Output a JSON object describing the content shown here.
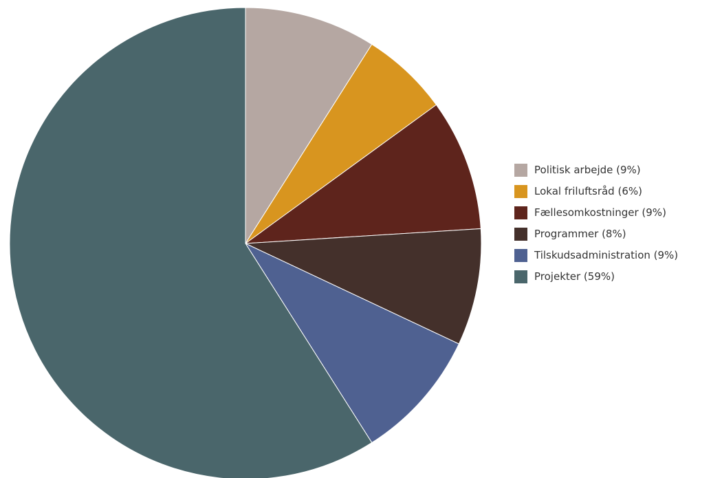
{
  "chart_data": {
    "type": "pie",
    "slices": [
      {
        "label": "Politisk arbejde (9%)",
        "value": 9,
        "color": "#b5a7a2"
      },
      {
        "label": "Lokal friluftsråd (6%)",
        "value": 6,
        "color": "#d8951f"
      },
      {
        "label": "Fællesomkostninger (9%)",
        "value": 9,
        "color": "#5e241c"
      },
      {
        "label": "Programmer (8%)",
        "value": 8,
        "color": "#44302b"
      },
      {
        "label": "Tilskudsadministration (9%)",
        "value": 9,
        "color": "#4f6191"
      },
      {
        "label": "Projekter (59%)",
        "value": 59,
        "color": "#4a666b"
      }
    ],
    "legend_position": "right"
  }
}
